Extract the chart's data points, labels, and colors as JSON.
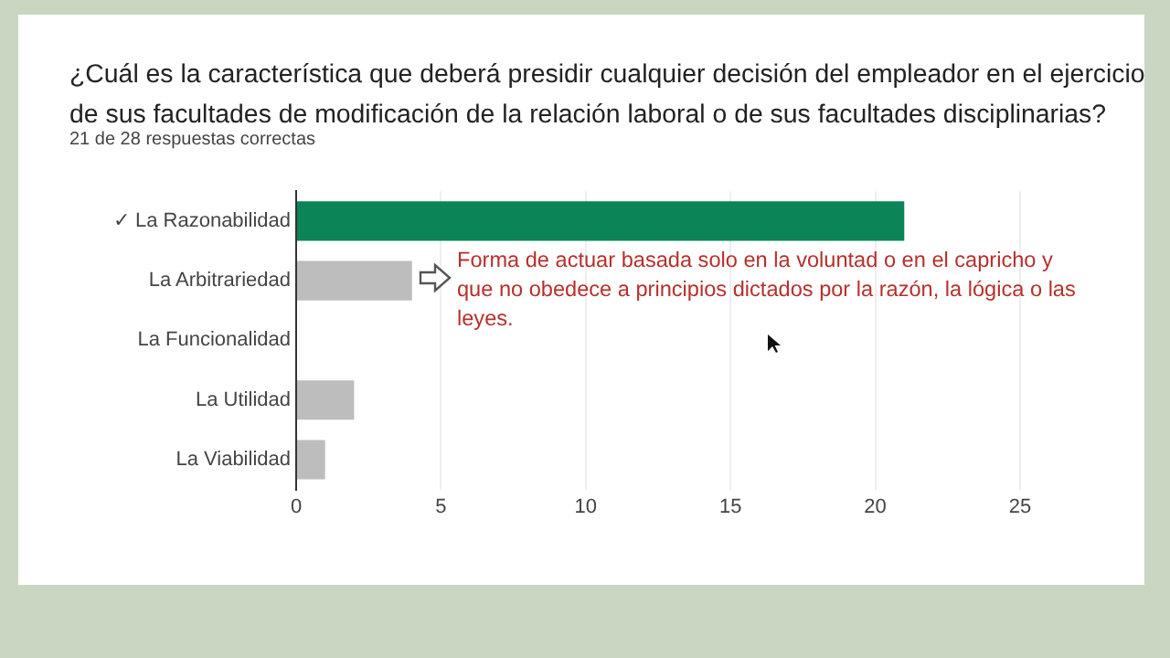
{
  "chart_data": {
    "type": "bar",
    "orientation": "horizontal",
    "title": "¿Cuál es la característica que deberá presidir cualquier decisión del empleador en el ejercicio de sus facultades de modificación de la relación laboral o de sus facultades disciplinarias?",
    "subtitle": "21 de 28 respuestas correctas",
    "categories": [
      "✓ La Razonabilidad",
      "La Arbitrariedad",
      "La Funcionalidad",
      "La Utilidad",
      "La Viabilidad"
    ],
    "values": [
      21,
      4,
      0,
      2,
      1
    ],
    "colors": [
      "#0b8457",
      "#bdbdbd",
      "#bdbdbd",
      "#bdbdbd",
      "#bdbdbd"
    ],
    "xlim": [
      0,
      25
    ],
    "xticks": [
      0,
      5,
      10,
      15,
      20,
      25
    ],
    "grid": "x",
    "annotations": [
      "Forma de actuar basada solo en la voluntad o en el capricho y que no obedece a principios dictados por la razón, la lógica o las leyes."
    ]
  }
}
